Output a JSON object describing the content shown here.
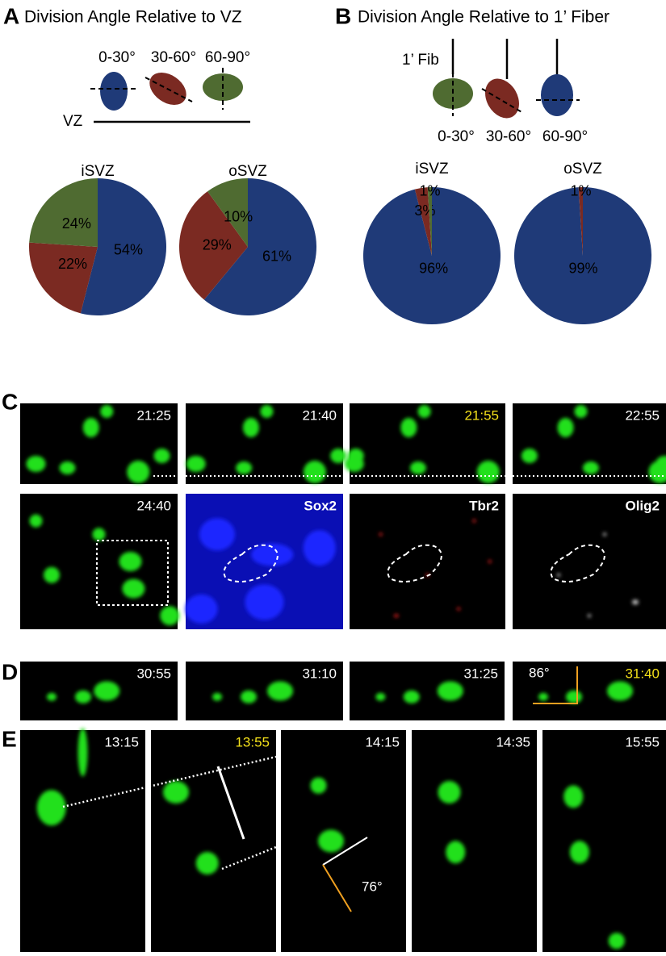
{
  "panel_a": {
    "label": "A",
    "title": "Division Angle Relative to VZ",
    "angles": [
      "0-30°",
      "30-60°",
      "60-90°"
    ],
    "surface": "VZ"
  },
  "panel_b": {
    "label": "B",
    "title": "Division Angle Relative to 1’ Fiber",
    "fiber": "1’ Fib",
    "angles": [
      "0-30°",
      "30-60°",
      "60-90°"
    ]
  },
  "chart_data": [
    {
      "type": "pie",
      "title": "iSVZ",
      "values": [
        54,
        22,
        24
      ],
      "value_labels": [
        "54%",
        "22%",
        "24%"
      ],
      "colors": [
        "#1f3a78",
        "#7b2a22",
        "#4f6b31"
      ]
    },
    {
      "type": "pie",
      "title": "oSVZ",
      "values": [
        61,
        29,
        10
      ],
      "value_labels": [
        "61%",
        "29%",
        "10%"
      ],
      "colors": [
        "#1f3a78",
        "#7b2a22",
        "#4f6b31"
      ]
    },
    {
      "type": "pie",
      "title": "iSVZ",
      "values": [
        96,
        3,
        1
      ],
      "value_labels": [
        "96%",
        "3%",
        "1%"
      ],
      "colors": [
        "#1f3a78",
        "#7b2a22",
        "#4f6b31"
      ]
    },
    {
      "type": "pie",
      "title": "oSVZ",
      "values": [
        99,
        1
      ],
      "value_labels": [
        "99%",
        "1%"
      ],
      "colors": [
        "#1f3a78",
        "#7b2a22"
      ]
    }
  ],
  "panel_c": {
    "label": "C",
    "times": [
      "21:25",
      "21:40",
      "21:55",
      "22:55",
      "24:40"
    ],
    "stains": [
      "Sox2",
      "Tbr2",
      "Olig2"
    ]
  },
  "panel_d": {
    "label": "D",
    "times": [
      "30:55",
      "31:10",
      "31:25",
      "31:40"
    ],
    "angle": "86°"
  },
  "panel_e": {
    "label": "E",
    "times": [
      "13:15",
      "13:55",
      "14:15",
      "14:35",
      "15:55"
    ],
    "angle": "76°"
  }
}
